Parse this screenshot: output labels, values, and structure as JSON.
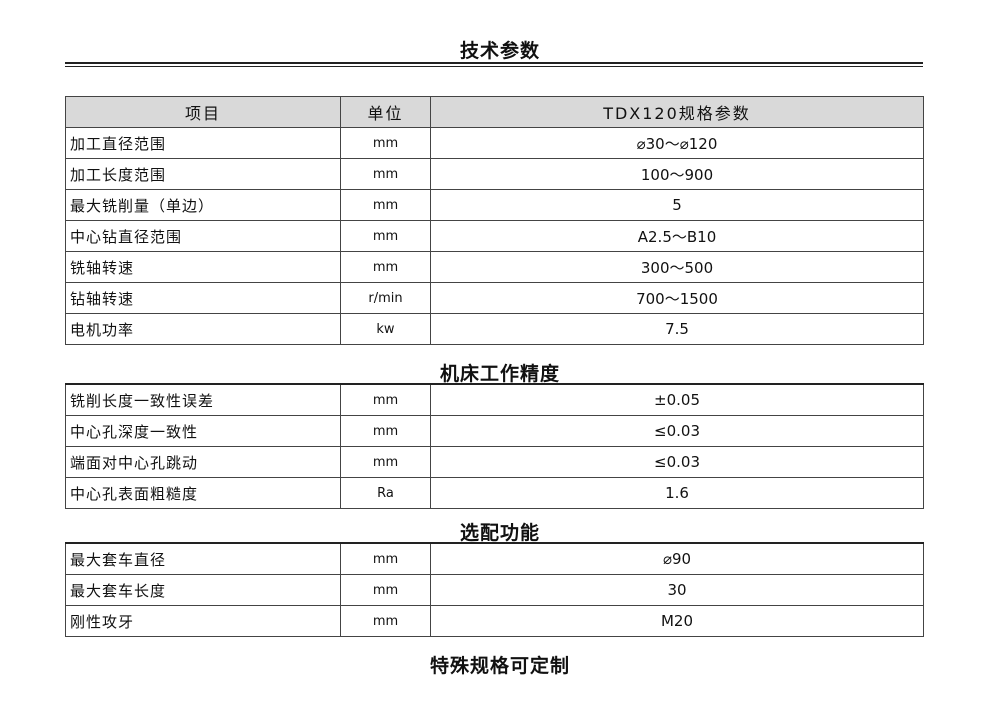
{
  "title": "技术参数",
  "spec_table": {
    "headers": [
      "项目",
      "单位",
      "TDX120规格参数"
    ],
    "rows": [
      [
        "加工直径范围",
        "mm",
        "⌀30～⌀120"
      ],
      [
        "加工长度范围",
        "mm",
        "100～900"
      ],
      [
        "最大铣削量（单边）",
        "mm",
        "5"
      ],
      [
        "中心钻直径范围",
        "mm",
        "A2.5～B10"
      ],
      [
        "铣轴转速",
        "mm",
        "300～500"
      ],
      [
        "钻轴转速",
        "r/min",
        "700～1500"
      ],
      [
        "电机功率",
        "kw",
        "7.5"
      ]
    ]
  },
  "precision": {
    "title": "机床工作精度",
    "rows": [
      [
        "铣削长度一致性误差",
        "mm",
        "±0.05"
      ],
      [
        "中心孔深度一致性",
        "mm",
        "≤0.03"
      ],
      [
        "端面对中心孔跳动",
        "mm",
        "≤0.03"
      ],
      [
        "中心孔表面粗糙度",
        "Ra",
        "1.6"
      ]
    ]
  },
  "options": {
    "title": "选配功能",
    "rows": [
      [
        "最大套车直径",
        "mm",
        "⌀90"
      ],
      [
        "最大套车长度",
        "mm",
        "30"
      ],
      [
        "刚性攻牙",
        "mm",
        "M20"
      ]
    ]
  },
  "footer": "特殊规格可定制"
}
